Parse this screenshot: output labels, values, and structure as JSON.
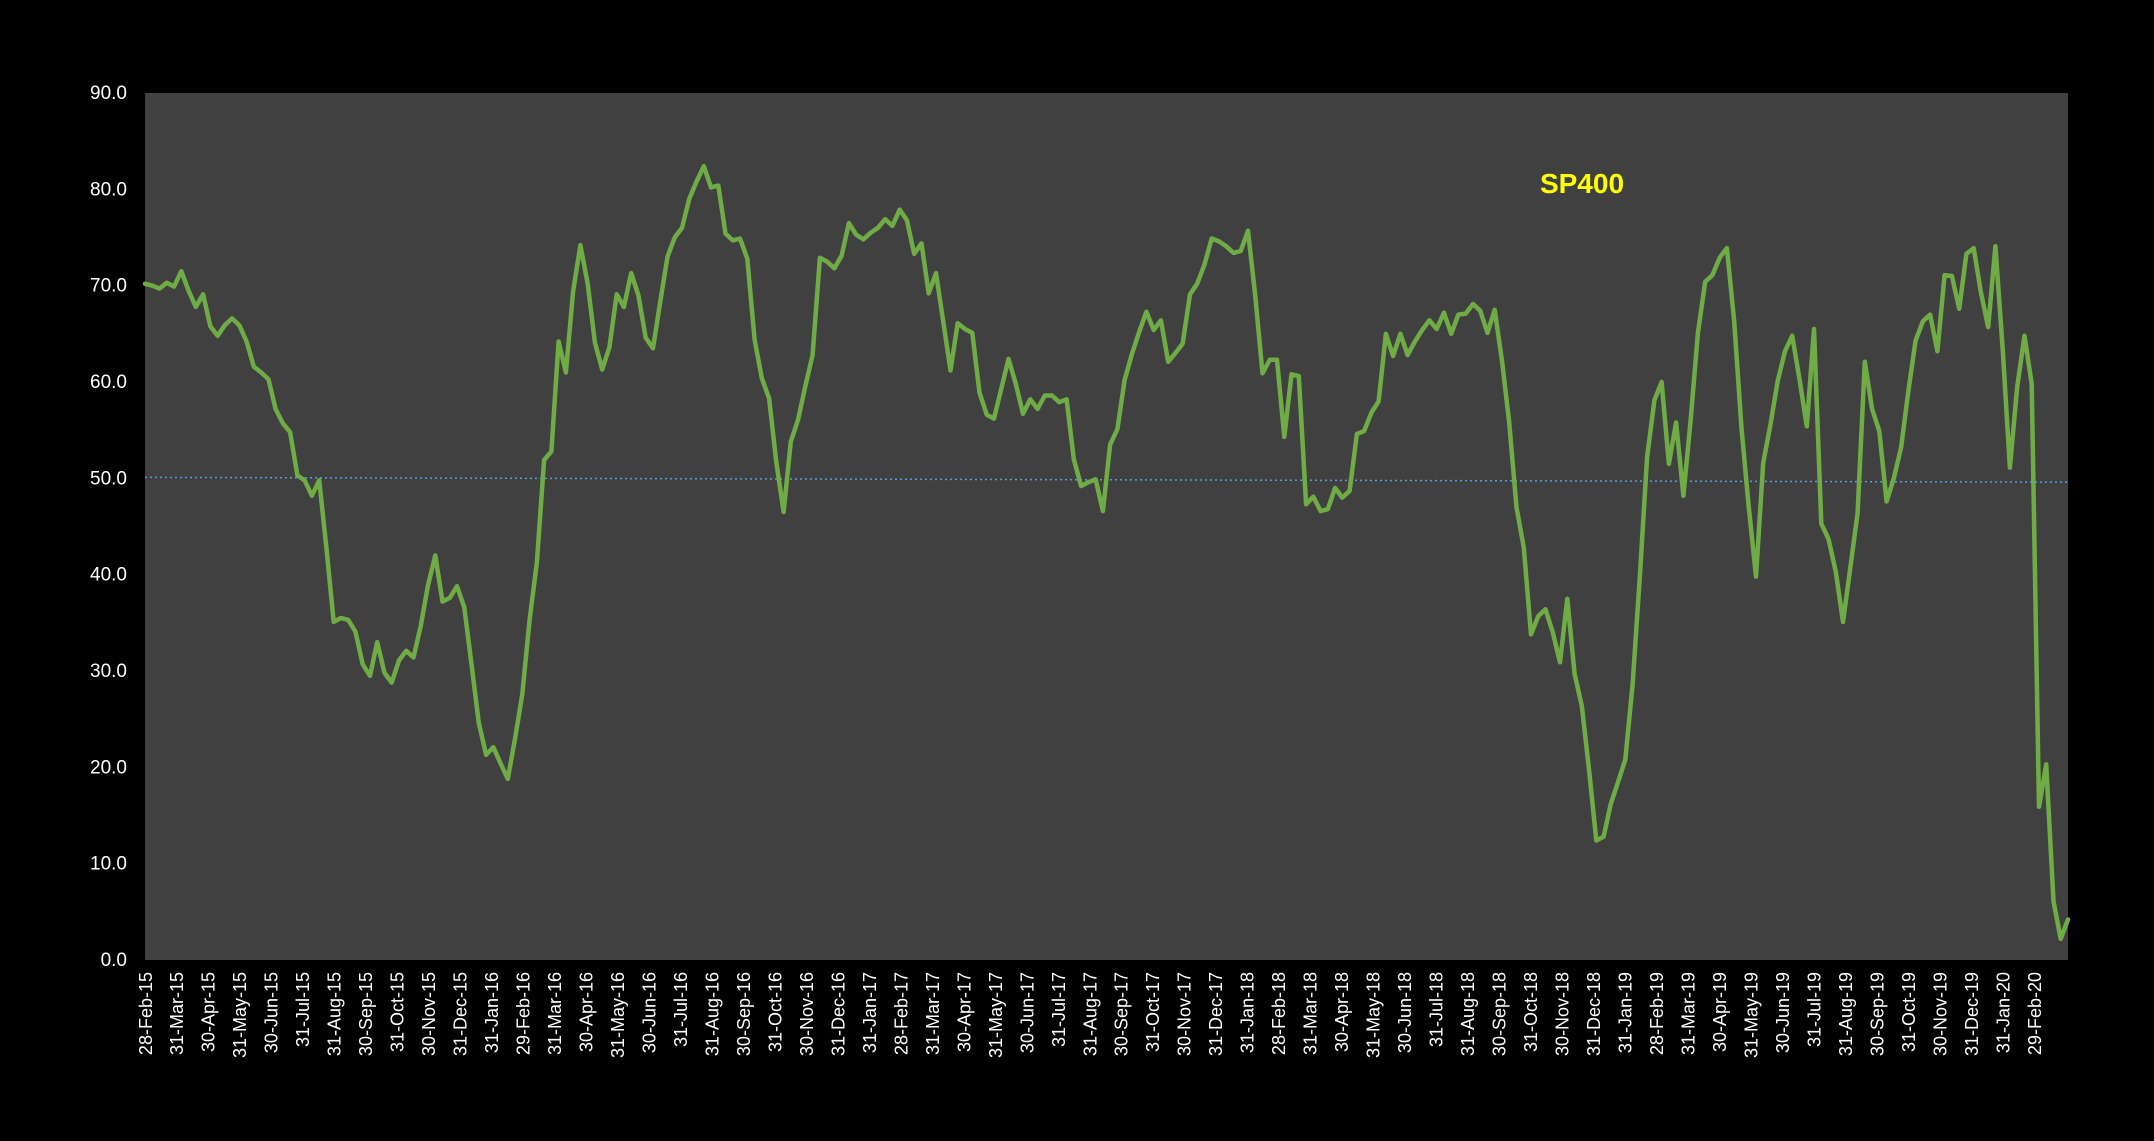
{
  "chart_data": {
    "type": "line",
    "title": "SP400",
    "xlabel": "",
    "ylabel": "",
    "ylim": [
      0,
      90
    ],
    "yticks": [
      "0.0",
      "10.0",
      "20.0",
      "30.0",
      "40.0",
      "50.0",
      "60.0",
      "70.0",
      "80.0",
      "90.0"
    ],
    "xticks": [
      "28-Feb-15",
      "31-Mar-15",
      "30-Apr-15",
      "31-May-15",
      "30-Jun-15",
      "31-Jul-15",
      "31-Aug-15",
      "30-Sep-15",
      "31-Oct-15",
      "30-Nov-15",
      "31-Dec-15",
      "31-Jan-16",
      "29-Feb-16",
      "31-Mar-16",
      "30-Apr-16",
      "31-May-16",
      "30-Jun-16",
      "31-Jul-16",
      "31-Aug-16",
      "30-Sep-16",
      "31-Oct-16",
      "30-Nov-16",
      "31-Dec-16",
      "31-Jan-17",
      "28-Feb-17",
      "31-Mar-17",
      "30-Apr-17",
      "31-May-17",
      "30-Jun-17",
      "31-Jul-17",
      "31-Aug-17",
      "30-Sep-17",
      "31-Oct-17",
      "30-Nov-17",
      "31-Dec-17",
      "31-Jan-18",
      "28-Feb-18",
      "31-Mar-18",
      "30-Apr-18",
      "31-May-18",
      "30-Jun-18",
      "31-Jul-18",
      "31-Aug-18",
      "30-Sep-18",
      "31-Oct-18",
      "30-Nov-18",
      "31-Dec-18",
      "31-Jan-19",
      "28-Feb-19",
      "31-Mar-19",
      "30-Apr-19",
      "31-May-19",
      "30-Jun-19",
      "31-Jul-19",
      "31-Aug-19",
      "30-Sep-19",
      "31-Oct-19",
      "30-Nov-19",
      "31-Dec-19",
      "31-Jan-20",
      "29-Feb-20"
    ],
    "grid": false,
    "legend": "none",
    "colors": {
      "background": "#000000",
      "plot_area": "#404040",
      "line": "#6fac46",
      "reference_line": "#5b9bd5",
      "title": "#ffff00",
      "text": "#ffffff"
    },
    "reference_line": {
      "y": [
        50.1,
        49.6
      ],
      "style": "dotted"
    },
    "series": [
      {
        "color": "#6fac46",
        "values": [
          70.2,
          70.0,
          69.7,
          70.3,
          69.9,
          71.5,
          69.5,
          67.8,
          69.1,
          65.8,
          64.8,
          65.9,
          66.6,
          65.9,
          64.2,
          61.6,
          61.0,
          60.3,
          57.2,
          55.7,
          54.8,
          50.3,
          49.8,
          48.2,
          49.8,
          42.8,
          35.1,
          35.5,
          35.3,
          34.1,
          30.7,
          29.5,
          33.0,
          29.8,
          28.8,
          31.1,
          32.1,
          31.4,
          34.7,
          38.9,
          42.0,
          37.2,
          37.6,
          38.8,
          36.6,
          30.7,
          24.6,
          21.3,
          22.1,
          20.4,
          18.8,
          23.0,
          27.6,
          35.3,
          41.3,
          51.9,
          52.8,
          64.2,
          61.0,
          69.4,
          74.2,
          70.2,
          64.1,
          61.3,
          63.6,
          69.1,
          67.8,
          71.3,
          69.0,
          64.6,
          63.5,
          68.3,
          73.0,
          75.0,
          76.0,
          79.0,
          80.8,
          82.4,
          80.2,
          80.4,
          75.4,
          74.7,
          74.9,
          72.8,
          64.4,
          60.4,
          58.3,
          51.7,
          46.5,
          53.8,
          56.1,
          59.6,
          62.8,
          72.9,
          72.5,
          71.8,
          73.1,
          76.5,
          75.3,
          74.8,
          75.5,
          76.0,
          76.9,
          76.2,
          77.9,
          76.8,
          73.3,
          74.4,
          69.2,
          71.3,
          66.3,
          61.2,
          66.1,
          65.5,
          65.1,
          58.9,
          56.6,
          56.2,
          59.3,
          62.4,
          59.8,
          56.7,
          58.2,
          57.2,
          58.6,
          58.6,
          57.9,
          58.2,
          52.0,
          49.2,
          49.6,
          49.9,
          46.6,
          53.5,
          55.1,
          60.2,
          62.9,
          65.2,
          67.3,
          65.4,
          66.4,
          62.1,
          63.0,
          64.0,
          69.1,
          70.2,
          72.2,
          74.9,
          74.6,
          74.1,
          73.4,
          73.6,
          75.7,
          68.9,
          60.9,
          62.3,
          62.3,
          54.3,
          60.8,
          60.6,
          47.3,
          48.1,
          46.6,
          46.8,
          49.0,
          48.0,
          48.7,
          54.6,
          54.9,
          56.8,
          58.0,
          65.0,
          62.7,
          65.0,
          62.8,
          64.2,
          65.4,
          66.4,
          65.5,
          67.2,
          65.0,
          67.0,
          67.1,
          68.1,
          67.4,
          65.1,
          67.5,
          62.2,
          55.8,
          47.0,
          42.8,
          33.8,
          35.7,
          36.4,
          34.0,
          30.9,
          37.5,
          29.7,
          26.4,
          19.7,
          12.4,
          12.8,
          16.2,
          18.5,
          20.8,
          28.6,
          39.9,
          52.2,
          58.1,
          60.0,
          51.5,
          55.8,
          48.2,
          56.1,
          65.1,
          70.4,
          71.1,
          72.9,
          73.9,
          66.3,
          55.2,
          47.1,
          39.8,
          51.6,
          55.6,
          60.1,
          63.2,
          64.8,
          60.3,
          55.4,
          65.5,
          45.3,
          43.7,
          40.3,
          35.1,
          40.7,
          46.4,
          62.1,
          57.2,
          54.9,
          47.6,
          50.0,
          53.2,
          59.1,
          64.3,
          66.3,
          67.0,
          63.2,
          71.1,
          71.0,
          67.6,
          73.3,
          73.9,
          69.3,
          65.7,
          74.1,
          63.4,
          51.1,
          59.5,
          64.8,
          59.8,
          15.9,
          20.3,
          6.1,
          2.2,
          4.2
        ]
      }
    ]
  }
}
